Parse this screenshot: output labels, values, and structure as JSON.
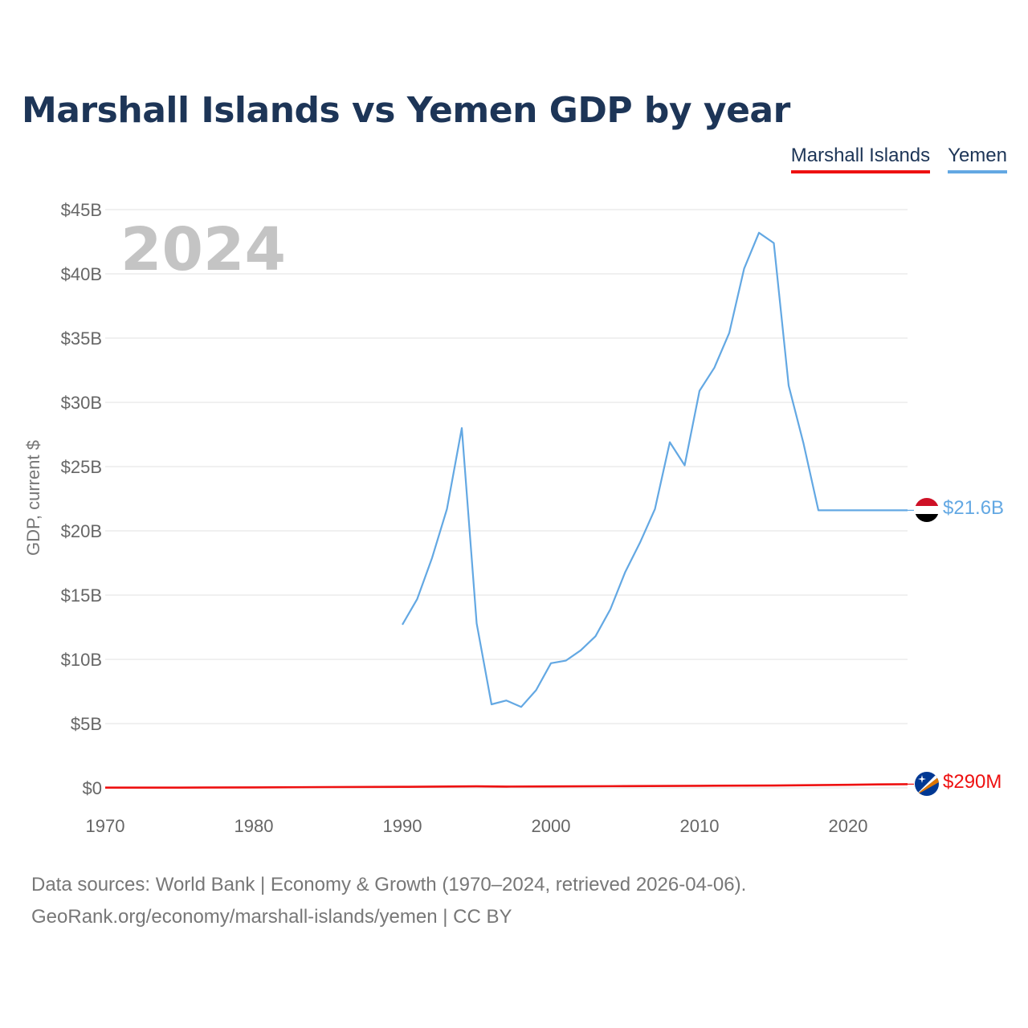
{
  "header": {
    "title": "Marshall Islands vs Yemen GDP by year"
  },
  "legend": {
    "marshall": "Marshall Islands",
    "yemen": "Yemen"
  },
  "overlay": {
    "year": "2024"
  },
  "end_labels": {
    "yemen": "$21.6B",
    "marshall": "$290M"
  },
  "flags": {
    "yemen": "yemen-flag-icon",
    "marshall": "marshall-islands-flag-icon"
  },
  "colors": {
    "marshall": "#ee1111",
    "yemen": "#63a8e3",
    "title": "#1d3557",
    "grid": "#e6e6e6"
  },
  "source": {
    "line1": "Data sources: World Bank | Economy & Growth (1970–2024, retrieved 2026-04-06).",
    "line2": "GeoRank.org/economy/marshall-islands/yemen | CC BY"
  },
  "chart_data": {
    "type": "line",
    "title": "Marshall Islands vs Yemen GDP by year",
    "xlabel": "",
    "ylabel": "GDP, current $",
    "xlim": [
      1970,
      2024
    ],
    "ylim": [
      0,
      45
    ],
    "y_unit": "billions USD",
    "x_ticks": [
      1970,
      1980,
      1990,
      2000,
      2010,
      2020
    ],
    "y_ticks": [
      0,
      5,
      10,
      15,
      20,
      25,
      30,
      35,
      40,
      45
    ],
    "y_tick_labels": [
      "$0",
      "$5B",
      "$10B",
      "$15B",
      "$20B",
      "$25B",
      "$30B",
      "$35B",
      "$40B",
      "$45B"
    ],
    "grid": true,
    "legend_position": "top-right",
    "series": [
      {
        "name": "Marshall Islands",
        "color": "#ee1111",
        "x": [
          1970,
          1975,
          1980,
          1985,
          1990,
          1995,
          1997,
          2000,
          2005,
          2010,
          2015,
          2020,
          2022,
          2024
        ],
        "values": [
          0.02,
          0.02,
          0.04,
          0.06,
          0.08,
          0.12,
          0.1,
          0.11,
          0.14,
          0.16,
          0.18,
          0.24,
          0.27,
          0.29
        ]
      },
      {
        "name": "Yemen",
        "color": "#63a8e3",
        "x": [
          1990,
          1991,
          1992,
          1993,
          1994,
          1995,
          1996,
          1997,
          1998,
          1999,
          2000,
          2001,
          2002,
          2003,
          2004,
          2005,
          2006,
          2007,
          2008,
          2009,
          2010,
          2011,
          2012,
          2013,
          2014,
          2015,
          2016,
          2017,
          2018,
          2019,
          2020,
          2021,
          2022,
          2023,
          2024
        ],
        "values": [
          12.7,
          14.7,
          17.9,
          21.7,
          28.0,
          12.8,
          6.5,
          6.8,
          6.3,
          7.6,
          9.7,
          9.9,
          10.7,
          11.8,
          13.9,
          16.8,
          19.1,
          21.7,
          26.9,
          25.1,
          30.9,
          32.7,
          35.4,
          40.4,
          43.2,
          42.4,
          31.3,
          26.8,
          21.6,
          21.6,
          21.6,
          21.6,
          21.6,
          21.6,
          21.6
        ]
      }
    ]
  }
}
